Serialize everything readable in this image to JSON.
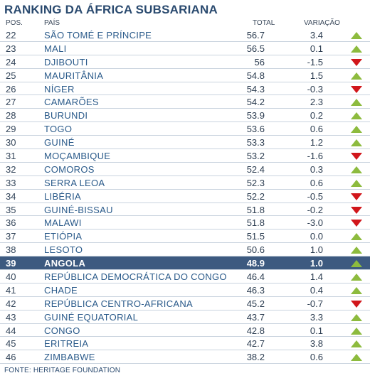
{
  "title": "RANKING DA ÁFRICA SUBSARIANA",
  "headers": {
    "pos": "POS.",
    "pais": "PAÍS",
    "total": "TOTAL",
    "variacao": "VARIAÇÃO"
  },
  "footer": "FONTE: HERITAGE FOUNDATION",
  "colors": {
    "up": "#8dbb3e",
    "down": "#d1161b",
    "highlight": "#3d5a80",
    "title": "#2a4a6f"
  },
  "highlight_country": "ANGOLA",
  "chart_data": {
    "type": "table",
    "title": "RANKING DA ÁFRICA SUBSARIANA",
    "columns": [
      "POS.",
      "PAÍS",
      "TOTAL",
      "VARIAÇÃO"
    ],
    "rows": [
      {
        "pos": "22",
        "pais": "SÃO TOMÉ E PRÍNCIPE",
        "total": "56.7",
        "variacao": "3.4",
        "trend": "up"
      },
      {
        "pos": "23",
        "pais": "MALI",
        "total": "56.5",
        "variacao": "0.1",
        "trend": "up"
      },
      {
        "pos": "24",
        "pais": "DJIBOUTI",
        "total": "56",
        "variacao": "-1.5",
        "trend": "down"
      },
      {
        "pos": "25",
        "pais": "MAURITÂNIA",
        "total": "54.8",
        "variacao": "1.5",
        "trend": "up"
      },
      {
        "pos": "26",
        "pais": "NÍGER",
        "total": "54.3",
        "variacao": "-0.3",
        "trend": "down"
      },
      {
        "pos": "27",
        "pais": "CAMARÕES",
        "total": "54.2",
        "variacao": "2.3",
        "trend": "up"
      },
      {
        "pos": "28",
        "pais": "BURUNDI",
        "total": "53.9",
        "variacao": "0.2",
        "trend": "up"
      },
      {
        "pos": "29",
        "pais": "TOGO",
        "total": "53.6",
        "variacao": "0.6",
        "trend": "up"
      },
      {
        "pos": "30",
        "pais": "GUINÉ",
        "total": "53.3",
        "variacao": "1.2",
        "trend": "up"
      },
      {
        "pos": "31",
        "pais": "MOÇAMBIQUE",
        "total": "53.2",
        "variacao": "-1.6",
        "trend": "down"
      },
      {
        "pos": "32",
        "pais": "COMOROS",
        "total": "52.4",
        "variacao": "0.3",
        "trend": "up"
      },
      {
        "pos": "33",
        "pais": "SERRA LEOA",
        "total": "52.3",
        "variacao": "0.6",
        "trend": "up"
      },
      {
        "pos": "34",
        "pais": "LIBÉRIA",
        "total": "52.2",
        "variacao": "-0.5",
        "trend": "down"
      },
      {
        "pos": "35",
        "pais": "GUINÉ-BISSAU",
        "total": "51.8",
        "variacao": "-0.2",
        "trend": "down"
      },
      {
        "pos": "36",
        "pais": "MALAWI",
        "total": "51.8",
        "variacao": "-3.0",
        "trend": "down"
      },
      {
        "pos": "37",
        "pais": "ETIÓPIA",
        "total": "51.5",
        "variacao": "0.0",
        "trend": "up"
      },
      {
        "pos": "38",
        "pais": "LESOTO",
        "total": "50.6",
        "variacao": "1.0",
        "trend": "up"
      },
      {
        "pos": "39",
        "pais": "ANGOLA",
        "total": "48.9",
        "variacao": "1.0",
        "trend": "up"
      },
      {
        "pos": "40",
        "pais": "REPÚBLICA DEMOCRÁTICA DO CONGO",
        "total": "46.4",
        "variacao": "1.4",
        "trend": "up"
      },
      {
        "pos": "41",
        "pais": "CHADE",
        "total": "46.3",
        "variacao": "0.4",
        "trend": "up"
      },
      {
        "pos": "42",
        "pais": "REPÚBLICA CENTRO-AFRICANA",
        "total": "45.2",
        "variacao": "-0.7",
        "trend": "down"
      },
      {
        "pos": "43",
        "pais": "GUINÉ EQUATORIAL",
        "total": "43.7",
        "variacao": "3.3",
        "trend": "up"
      },
      {
        "pos": "44",
        "pais": "CONGO",
        "total": "42.8",
        "variacao": "0.1",
        "trend": "up"
      },
      {
        "pos": "45",
        "pais": "ERITREIA",
        "total": "42.7",
        "variacao": "3.8",
        "trend": "up"
      },
      {
        "pos": "46",
        "pais": "ZIMBABWE",
        "total": "38.2",
        "variacao": "0.6",
        "trend": "up"
      }
    ]
  }
}
